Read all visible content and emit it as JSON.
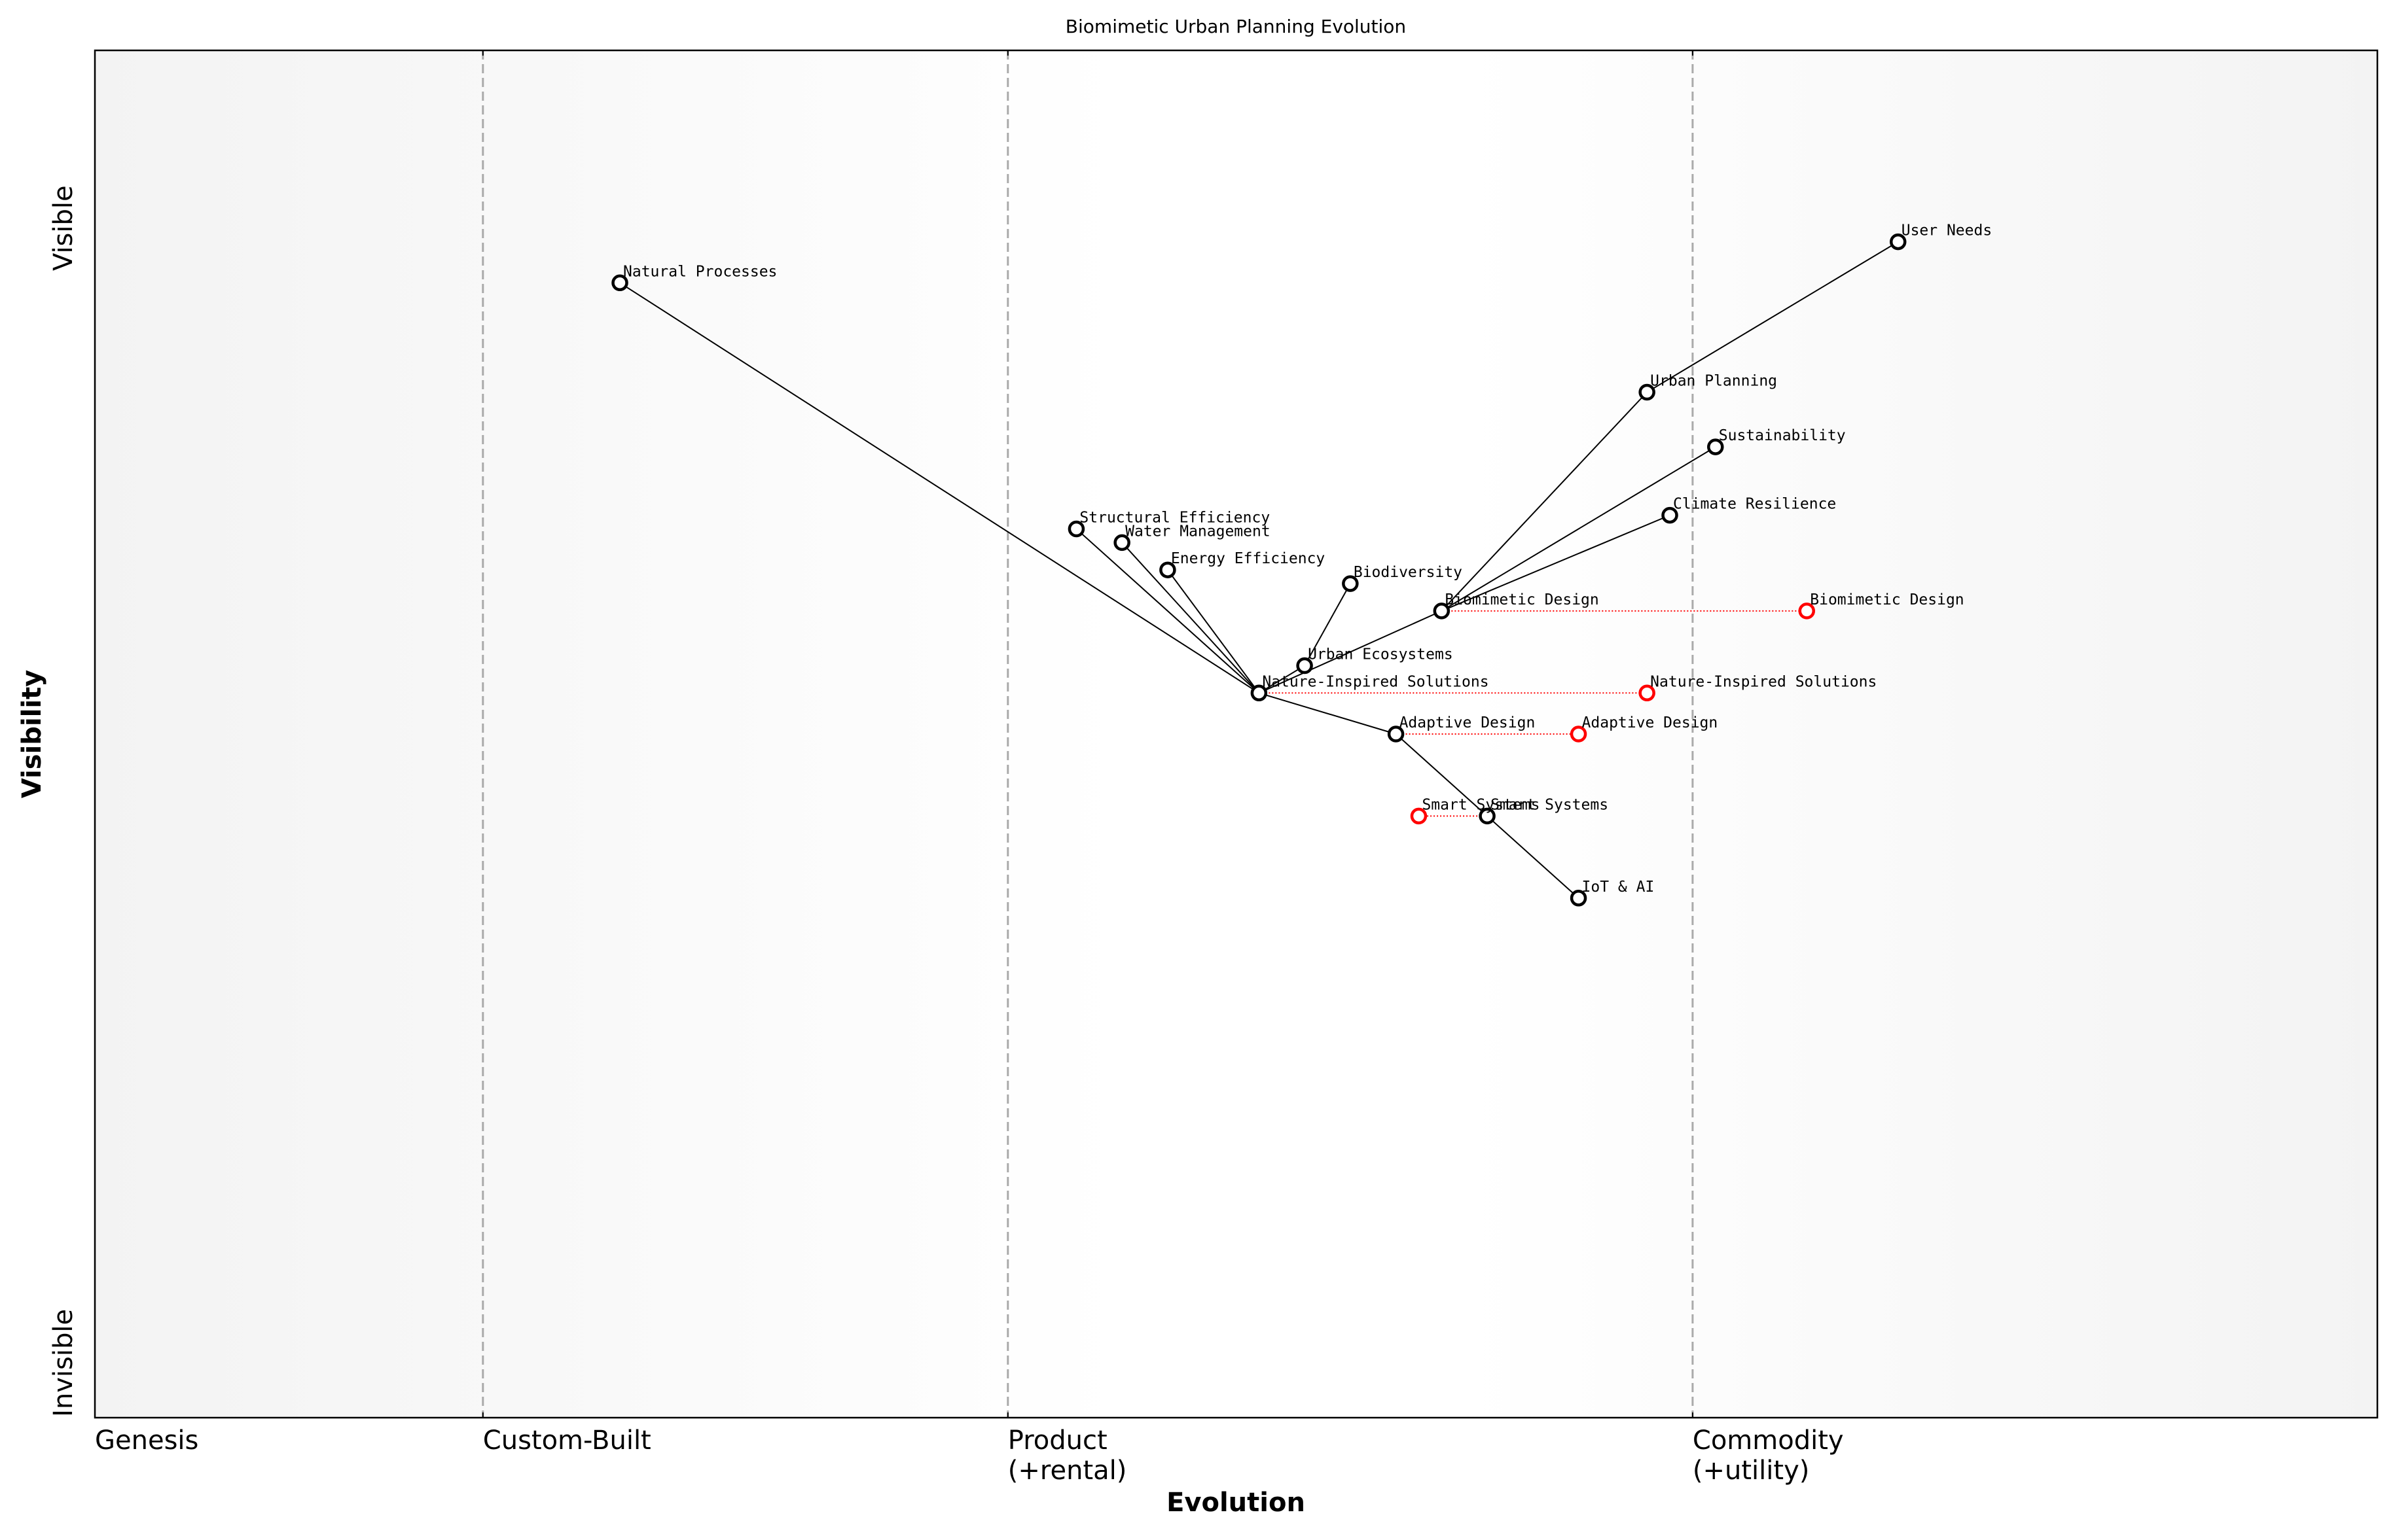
{
  "chart_data": {
    "type": "wardley",
    "title": "Biomimetic Urban Planning Evolution",
    "x_label": "Evolution",
    "y_label": "Visibility",
    "xlim": [
      0,
      1
    ],
    "ylim": [
      0,
      1
    ],
    "xticks": [
      {
        "value": 0,
        "label": "Genesis"
      },
      {
        "value": 0.17,
        "label": "Custom-Built"
      },
      {
        "value": 0.4,
        "label": "Product\n(+rental)"
      },
      {
        "value": 0.7,
        "label": "Commodity\n(+utility)"
      }
    ],
    "yticks": [
      {
        "value": 0.04,
        "label": "Invisible"
      },
      {
        "value": 0.87,
        "label": "Visible"
      }
    ],
    "stage_lines": [
      0.17,
      0.4,
      0.7
    ],
    "component_color": "#000000",
    "evolved_color": "#ff0000",
    "components": [
      {
        "name": "User Needs",
        "x": 0.79,
        "y": 0.86
      },
      {
        "name": "Natural Processes",
        "x": 0.23,
        "y": 0.83
      },
      {
        "name": "Urban Planning",
        "x": 0.68,
        "y": 0.75
      },
      {
        "name": "Sustainability",
        "x": 0.71,
        "y": 0.71
      },
      {
        "name": "Climate Resilience",
        "x": 0.69,
        "y": 0.66
      },
      {
        "name": "Structural Efficiency",
        "x": 0.43,
        "y": 0.65
      },
      {
        "name": "Water Management",
        "x": 0.45,
        "y": 0.64
      },
      {
        "name": "Energy Efficiency",
        "x": 0.47,
        "y": 0.62
      },
      {
        "name": "Biodiversity",
        "x": 0.55,
        "y": 0.61
      },
      {
        "name": "Biomimetic Design",
        "x": 0.59,
        "y": 0.59
      },
      {
        "name": "Urban Ecosystems",
        "x": 0.53,
        "y": 0.55
      },
      {
        "name": "Nature-Inspired Solutions",
        "x": 0.51,
        "y": 0.53
      },
      {
        "name": "Adaptive Design",
        "x": 0.57,
        "y": 0.5
      },
      {
        "name": "Smart Systems",
        "x": 0.61,
        "y": 0.44
      },
      {
        "name": "IoT & AI",
        "x": 0.65,
        "y": 0.38
      }
    ],
    "evolved": [
      {
        "name": "Biomimetic Design",
        "x": 0.75,
        "y": 0.59
      },
      {
        "name": "Nature-Inspired Solutions",
        "x": 0.68,
        "y": 0.53
      },
      {
        "name": "Adaptive Design",
        "x": 0.65,
        "y": 0.5
      },
      {
        "name": "Smart Systems",
        "x": 0.58,
        "y": 0.44
      }
    ],
    "links": [
      [
        "User Needs",
        "Urban Planning"
      ],
      [
        "Urban Planning",
        "Biomimetic Design"
      ],
      [
        "Sustainability",
        "Biomimetic Design"
      ],
      [
        "Climate Resilience",
        "Biomimetic Design"
      ],
      [
        "Biomimetic Design",
        "Nature-Inspired Solutions"
      ],
      [
        "Biodiversity",
        "Urban Ecosystems"
      ],
      [
        "Urban Ecosystems",
        "Nature-Inspired Solutions"
      ],
      [
        "Nature-Inspired Solutions",
        "Natural Processes"
      ],
      [
        "Nature-Inspired Solutions",
        "Structural Efficiency"
      ],
      [
        "Nature-Inspired Solutions",
        "Water Management"
      ],
      [
        "Nature-Inspired Solutions",
        "Energy Efficiency"
      ],
      [
        "Nature-Inspired Solutions",
        "Adaptive Design"
      ],
      [
        "Adaptive Design",
        "Smart Systems"
      ],
      [
        "Smart Systems",
        "IoT & AI"
      ]
    ]
  }
}
